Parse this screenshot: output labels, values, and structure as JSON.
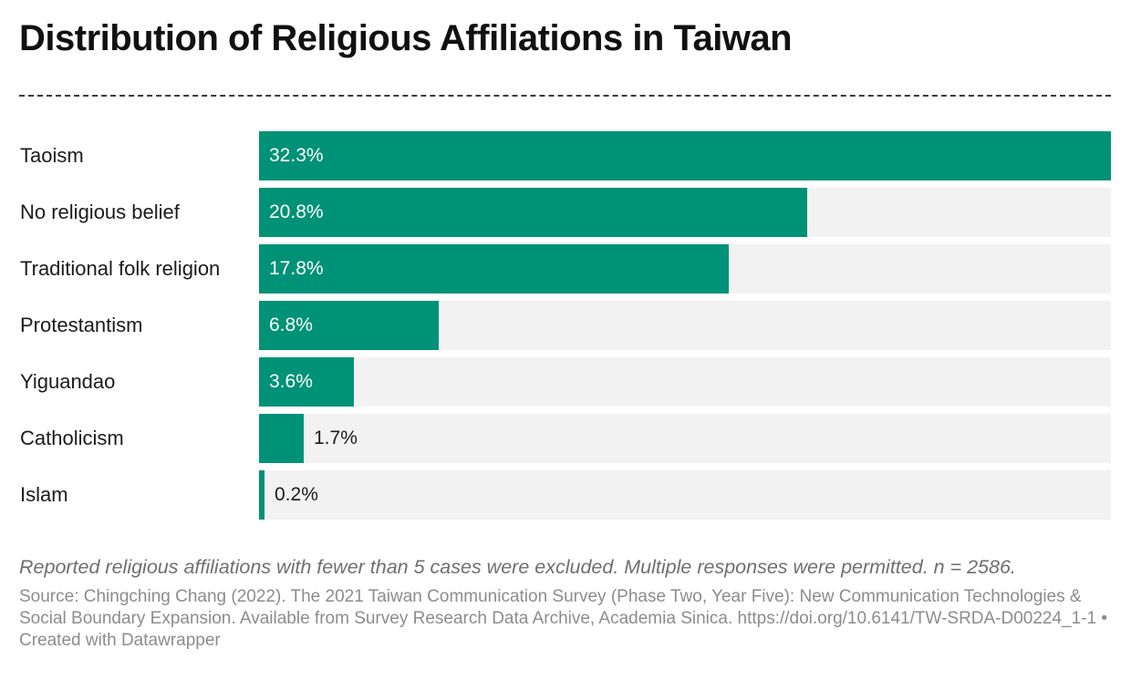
{
  "title": "Distribution of Religious Affiliations in Taiwan",
  "chart_data": {
    "type": "bar",
    "orientation": "horizontal",
    "title": "Distribution of Religious Affiliations in Taiwan",
    "categories": [
      "Taoism",
      "No religious belief",
      "Traditional folk religion",
      "Protestantism",
      "Yiguandao",
      "Catholicism",
      "Islam"
    ],
    "values": [
      32.3,
      20.8,
      17.8,
      6.8,
      3.6,
      1.7,
      0.2
    ],
    "value_labels": [
      "32.3%",
      "20.8%",
      "17.8%",
      "6.8%",
      "3.6%",
      "1.7%",
      "0.2%"
    ],
    "xlim": [
      0,
      32.3
    ],
    "unit": "%",
    "bar_color": "#009277",
    "track_color": "#f2f2f2"
  },
  "note": "Reported religious affiliations with fewer than 5 cases were excluded. Multiple responses were permitted. n = 2586.",
  "source": "Source: Chingching Chang (2022). The 2021 Taiwan Communication Survey (Phase Two, Year Five): New Communication Technologies & Social Boundary Expansion. Available from Survey Research Data Archive, Academia Sinica. https://doi.org/10.6141/TW-SRDA-D00224_1-1 • Created with Datawrapper"
}
